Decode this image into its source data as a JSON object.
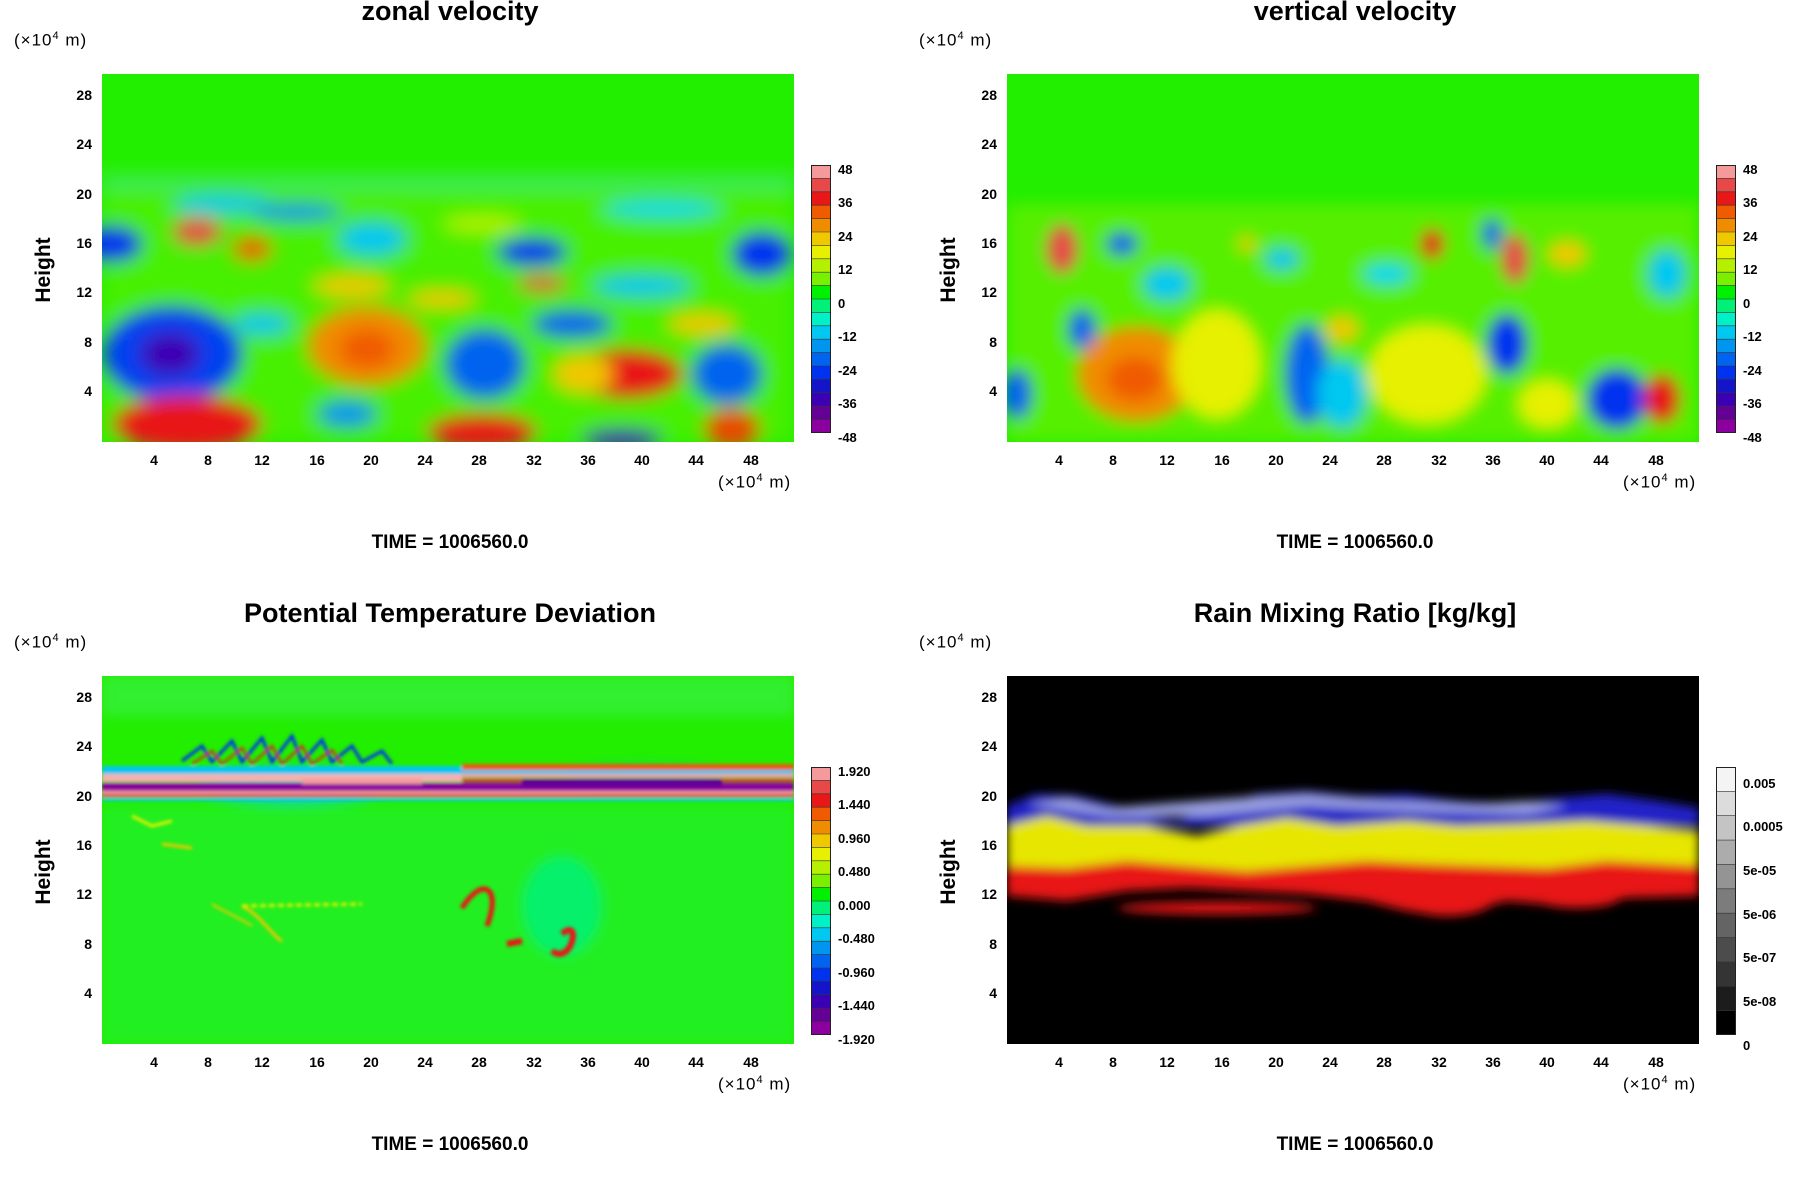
{
  "common": {
    "y_axis_label": "Height",
    "unit_prefix": "(×10",
    "unit_exponent": "4",
    "unit_suffix": " m)",
    "x_ticks": [
      "4",
      "8",
      "12",
      "16",
      "20",
      "24",
      "28",
      "32",
      "36",
      "40",
      "44",
      "48"
    ],
    "y_ticks": [
      "28",
      "24",
      "20",
      "16",
      "12",
      "8",
      "4"
    ],
    "time_label": "TIME = 1006560.0"
  },
  "panels": [
    {
      "title": "zonal velocity",
      "colorbar_labels": [
        "48",
        "36",
        "24",
        "12",
        "0",
        "-12",
        "-24",
        "-36",
        "-48"
      ],
      "colorbar_colors": [
        "#f49a9a",
        "#e84848",
        "#e81818",
        "#f05a00",
        "#f08c00",
        "#f0c800",
        "#e6f000",
        "#b4f000",
        "#78f000",
        "#00f000",
        "#00f078",
        "#00f0c8",
        "#00c8f0",
        "#0096f0",
        "#0064f0",
        "#0032f0",
        "#1414c8",
        "#3c00b4",
        "#640096",
        "#8c00a0"
      ]
    },
    {
      "title": "vertical velocity",
      "colorbar_labels": [
        "48",
        "36",
        "24",
        "12",
        "0",
        "-12",
        "-24",
        "-36",
        "-48"
      ],
      "colorbar_colors": [
        "#f49a9a",
        "#e84848",
        "#e81818",
        "#f05a00",
        "#f08c00",
        "#f0c800",
        "#e6f000",
        "#b4f000",
        "#78f000",
        "#00f000",
        "#00f078",
        "#00f0c8",
        "#00c8f0",
        "#0096f0",
        "#0064f0",
        "#0032f0",
        "#1414c8",
        "#3c00b4",
        "#640096",
        "#8c00a0"
      ]
    },
    {
      "title": "Potential Temperature Deviation",
      "colorbar_labels": [
        "1.920",
        "1.440",
        "0.960",
        "0.480",
        "0.000",
        "-0.480",
        "-0.960",
        "-1.440",
        "-1.920"
      ],
      "colorbar_colors": [
        "#f49a9a",
        "#e84848",
        "#e81818",
        "#f05a00",
        "#f08c00",
        "#f0c800",
        "#e6f000",
        "#b4f000",
        "#78f000",
        "#00f000",
        "#00f078",
        "#00f0c8",
        "#00c8f0",
        "#0096f0",
        "#0064f0",
        "#0032f0",
        "#1414c8",
        "#3c00b4",
        "#640096",
        "#8c00a0"
      ]
    },
    {
      "title": "Rain Mixing Ratio [kg/kg]",
      "colorbar_labels": [
        "0.005",
        "0.0005",
        "5e-05",
        "5e-06",
        "5e-07",
        "5e-08",
        "0"
      ],
      "colorbar_colors": [
        "#f4f4f4",
        "#dcdcdc",
        "#c4c4c4",
        "#acacac",
        "#949494",
        "#7c7c7c",
        "#646464",
        "#4c4c4c",
        "#343434",
        "#1c1c1c",
        "#000000"
      ]
    }
  ],
  "chart_data": [
    {
      "type": "heatmap",
      "title": "zonal velocity",
      "xlabel": "(×10^4 m)",
      "ylabel": "Height",
      "x_ticks": [
        4,
        8,
        12,
        16,
        20,
        24,
        28,
        32,
        36,
        40,
        44,
        48
      ],
      "y_ticks": [
        4,
        8,
        12,
        16,
        20,
        24,
        28
      ],
      "xlim": [
        0,
        51.2
      ],
      "ylim": [
        0,
        30
      ],
      "colorbar": [
        48,
        36,
        24,
        12,
        0,
        -12,
        -24,
        -36,
        -48
      ],
      "annotation": "TIME = 1006560.0"
    },
    {
      "type": "heatmap",
      "title": "vertical velocity",
      "xlabel": "(×10^4 m)",
      "ylabel": "Height",
      "x_ticks": [
        4,
        8,
        12,
        16,
        20,
        24,
        28,
        32,
        36,
        40,
        44,
        48
      ],
      "y_ticks": [
        4,
        8,
        12,
        16,
        20,
        24,
        28
      ],
      "xlim": [
        0,
        51.2
      ],
      "ylim": [
        0,
        30
      ],
      "colorbar": [
        48,
        36,
        24,
        12,
        0,
        -12,
        -24,
        -36,
        -48
      ],
      "annotation": "TIME = 1006560.0"
    },
    {
      "type": "heatmap",
      "title": "Potential Temperature Deviation",
      "xlabel": "(×10^4 m)",
      "ylabel": "Height",
      "x_ticks": [
        4,
        8,
        12,
        16,
        20,
        24,
        28,
        32,
        36,
        40,
        44,
        48
      ],
      "y_ticks": [
        4,
        8,
        12,
        16,
        20,
        24,
        28
      ],
      "xlim": [
        0,
        51.2
      ],
      "ylim": [
        0,
        30
      ],
      "colorbar": [
        1.92,
        1.44,
        0.96,
        0.48,
        0.0,
        -0.48,
        -0.96,
        -1.44,
        -1.92
      ],
      "annotation": "TIME = 1006560.0"
    },
    {
      "type": "heatmap",
      "title": "Rain Mixing Ratio [kg/kg]",
      "xlabel": "(×10^4 m)",
      "ylabel": "Height",
      "x_ticks": [
        4,
        8,
        12,
        16,
        20,
        24,
        28,
        32,
        36,
        40,
        44,
        48
      ],
      "y_ticks": [
        4,
        8,
        12,
        16,
        20,
        24,
        28
      ],
      "xlim": [
        0,
        51.2
      ],
      "ylim": [
        0,
        30
      ],
      "colorbar": [
        "0.005",
        "0.0005",
        "5e-05",
        "5e-06",
        "5e-07",
        "5e-08",
        "0"
      ],
      "annotation": "TIME = 1006560.0"
    }
  ]
}
